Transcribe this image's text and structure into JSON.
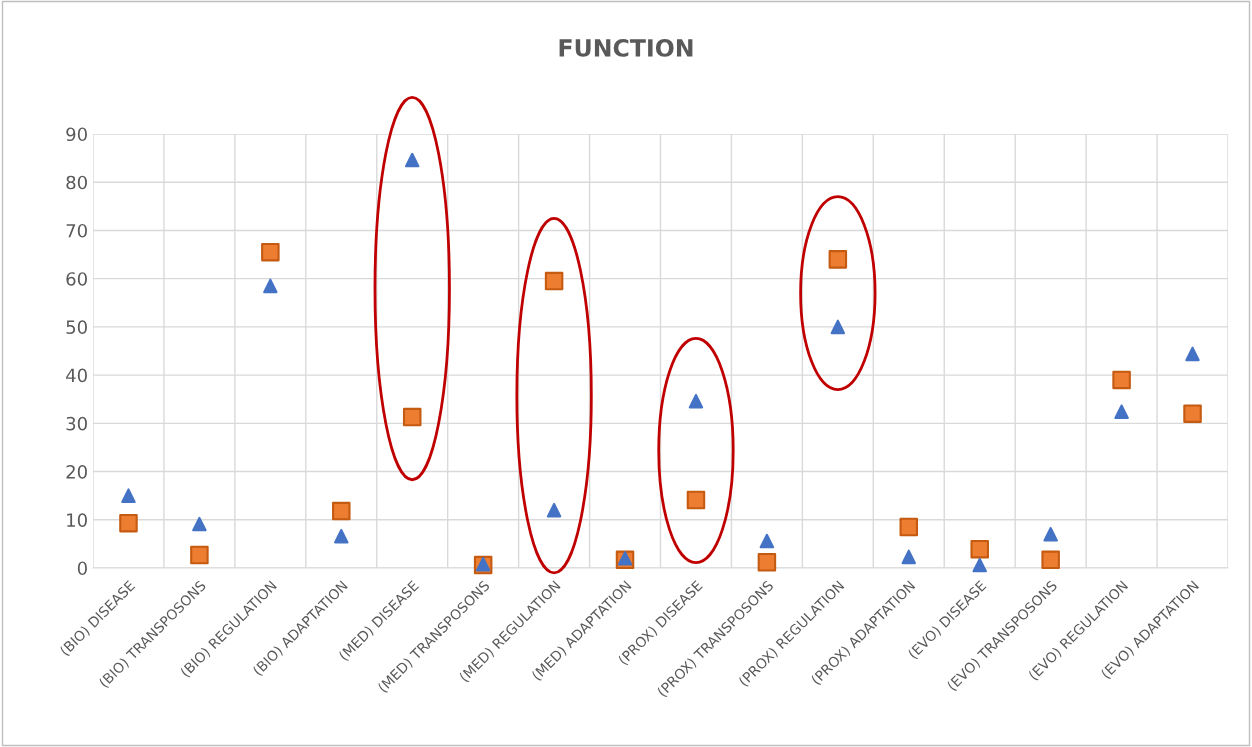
{
  "chart_data": {
    "type": "scatter",
    "title": "FUNCTION",
    "categories": [
      "(BIO) DISEASE",
      "(BIO) TRANSPOSONS",
      "(BIO) REGULATION",
      "(BIO) ADAPTATION",
      "(MED) DISEASE",
      "(MED) TRANSPOSONS",
      "(MED) REGULATION",
      "(MED) ADAPTATION",
      "(PROX) DISEASE",
      "(PROX) TRANSPOSONS",
      "(PROX) REGULATION",
      "(PROX) ADAPTATION",
      "(EVO) DISEASE",
      "(EVO) TRANSPOSONS",
      "(EVO) REGULATION",
      "(EVO) ADAPTATION"
    ],
    "series": [
      {
        "color": "#4472c4",
        "marker": "triangle",
        "values": [
          15,
          9.1,
          58.5,
          6.6,
          84.6,
          0.8,
          12,
          2,
          34.6,
          5.6,
          50,
          2.3,
          0.6,
          7,
          32.4,
          44.4
        ]
      },
      {
        "color": "#ed7d31",
        "marker": "square",
        "values": [
          9.3,
          2.7,
          65.5,
          11.8,
          31.3,
          0.6,
          59.5,
          1.7,
          14.1,
          1.2,
          64,
          8.5,
          3.9,
          1.7,
          39,
          32
        ]
      }
    ],
    "ylim": [
      0,
      90
    ],
    "yticks": [
      0,
      10,
      20,
      30,
      40,
      50,
      60,
      70,
      80,
      90
    ],
    "grid": true,
    "legend": false
  }
}
